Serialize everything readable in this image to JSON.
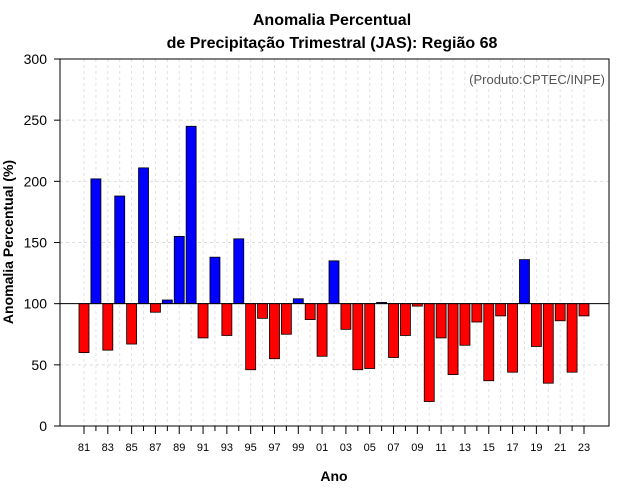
{
  "chart_data": {
    "type": "bar",
    "title": "Anomalia Percentual",
    "subtitle": "de Precipitação Trimestral (JAS): Região 68",
    "xlabel": "Ano",
    "ylabel": "Anomalia Percentual (%)",
    "annotation": "(Produto:CPTEC/INPE)",
    "ylim": [
      0,
      300
    ],
    "yticks": [
      0,
      50,
      100,
      150,
      200,
      250,
      300
    ],
    "baseline": 100,
    "grid": true,
    "categories": [
      "81",
      "82",
      "83",
      "84",
      "85",
      "86",
      "87",
      "88",
      "89",
      "90",
      "91",
      "92",
      "93",
      "94",
      "95",
      "96",
      "97",
      "98",
      "99",
      "00",
      "01",
      "02",
      "03",
      "04",
      "05",
      "06",
      "07",
      "08",
      "09",
      "10",
      "11",
      "12",
      "13",
      "14",
      "15",
      "16",
      "17",
      "18",
      "19",
      "20",
      "21",
      "22",
      "23"
    ],
    "xtick_labels": [
      "81",
      "83",
      "85",
      "87",
      "89",
      "91",
      "93",
      "95",
      "97",
      "99",
      "01",
      "03",
      "05",
      "07",
      "09",
      "11",
      "13",
      "15",
      "17",
      "19",
      "21",
      "23"
    ],
    "values": [
      60,
      202,
      62,
      188,
      67,
      211,
      93,
      103,
      155,
      245,
      72,
      138,
      74,
      153,
      46,
      88,
      55,
      75,
      104,
      87,
      57,
      135,
      79,
      46,
      47,
      101,
      56,
      74,
      98,
      20,
      72,
      42,
      66,
      85,
      37,
      90,
      44,
      136,
      65,
      35,
      86,
      44,
      90
    ],
    "colors": {
      "above": "#0000ff",
      "below": "#ff0000"
    }
  }
}
